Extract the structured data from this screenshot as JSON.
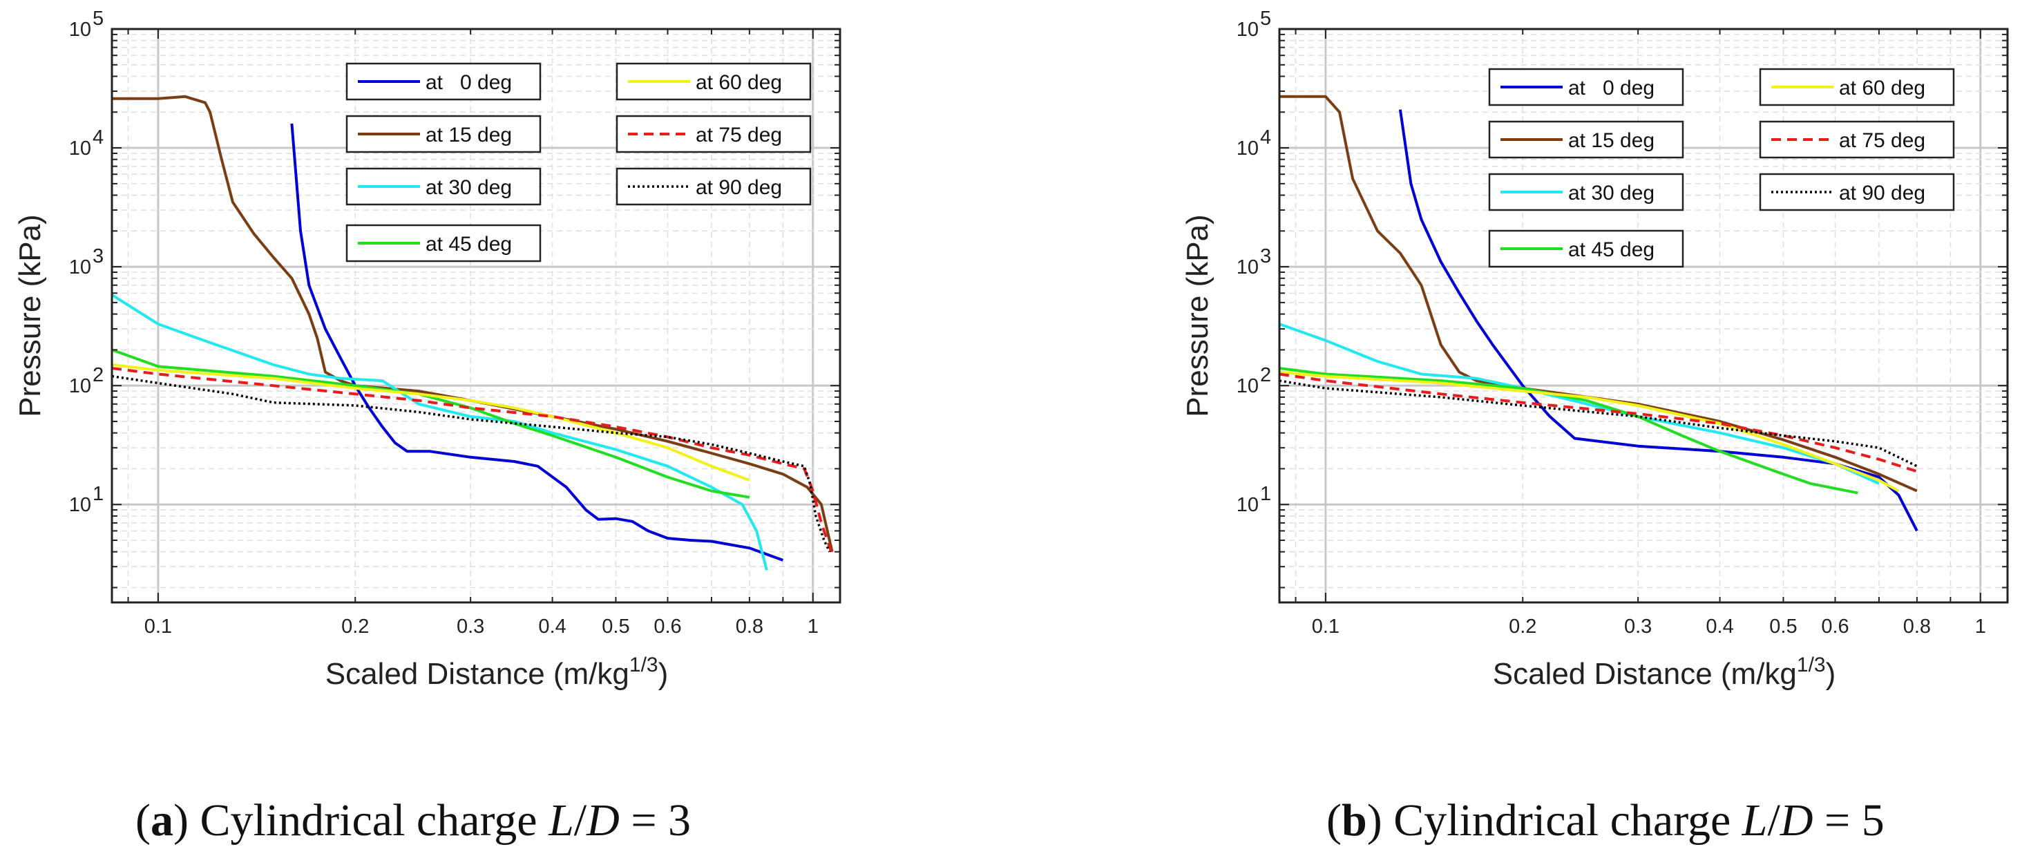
{
  "chart_data": [
    {
      "type": "line",
      "panel": "a",
      "caption": {
        "letter": "a",
        "text": "Cylindrical charge L/D = 3"
      },
      "xlabel": "Scaled Distance (m/kg1/3)",
      "ylabel": "Pressure (kPa)",
      "xscale": "log",
      "yscale": "log",
      "xlim": [
        0.085,
        1.1
      ],
      "ylim": [
        1.5,
        100000
      ],
      "xticks": [
        {
          "v": 0.1,
          "label": "0.1"
        },
        {
          "v": 0.2,
          "label": "0.2"
        },
        {
          "v": 0.3,
          "label": "0.3"
        },
        {
          "v": 0.4,
          "label": "0.4"
        },
        {
          "v": 0.5,
          "label": "0.5"
        },
        {
          "v": 0.6,
          "label": "0.6"
        },
        {
          "v": 0.8,
          "label": "0.8"
        },
        {
          "v": 1,
          "label": "1"
        }
      ],
      "yticks": [
        {
          "v": 10,
          "base": "10",
          "exp": "1"
        },
        {
          "v": 100,
          "base": "10",
          "exp": "2"
        },
        {
          "v": 1000,
          "base": "10",
          "exp": "3"
        },
        {
          "v": 10000,
          "base": "10",
          "exp": "4"
        },
        {
          "v": 100000,
          "base": "10",
          "exp": "5"
        }
      ],
      "grid": true,
      "legend_position": "top",
      "series": [
        {
          "name": "at   0 deg",
          "color": "#0000d4",
          "dash": "solid",
          "x": [
            0.16,
            0.165,
            0.17,
            0.18,
            0.19,
            0.2,
            0.21,
            0.22,
            0.23,
            0.24,
            0.26,
            0.3,
            0.35,
            0.38,
            0.42,
            0.45,
            0.47,
            0.5,
            0.53,
            0.56,
            0.6,
            0.65,
            0.7,
            0.8,
            0.9
          ],
          "y": [
            16000,
            2000,
            700,
            300,
            170,
            100,
            65,
            45,
            33,
            28,
            28,
            25,
            23,
            21,
            14,
            9,
            7.5,
            7.6,
            7.2,
            6,
            5.2,
            5,
            4.9,
            4.3,
            3.4
          ]
        },
        {
          "name": "at 15 deg",
          "color": "#7a3e14",
          "dash": "solid",
          "x": [
            0.085,
            0.1,
            0.11,
            0.118,
            0.12,
            0.125,
            0.13,
            0.14,
            0.15,
            0.16,
            0.17,
            0.175,
            0.18,
            0.19,
            0.2,
            0.25,
            0.3,
            0.4,
            0.5,
            0.6,
            0.7,
            0.8,
            0.9,
            0.98,
            1.03,
            1.07
          ],
          "y": [
            26000,
            26000,
            27000,
            24000,
            20000,
            8000,
            3500,
            1900,
            1200,
            800,
            400,
            250,
            130,
            110,
            100,
            90,
            75,
            55,
            43,
            34,
            27,
            22,
            18,
            14,
            10,
            4
          ]
        },
        {
          "name": "at 30 deg",
          "color": "#22e8f0",
          "dash": "solid",
          "x": [
            0.085,
            0.1,
            0.12,
            0.15,
            0.17,
            0.19,
            0.22,
            0.25,
            0.3,
            0.35,
            0.4,
            0.5,
            0.6,
            0.7,
            0.78,
            0.82,
            0.85
          ],
          "y": [
            580,
            330,
            230,
            150,
            125,
            115,
            110,
            70,
            55,
            50,
            40,
            29,
            21,
            14,
            10,
            6,
            2.8
          ]
        },
        {
          "name": "at 45 deg",
          "color": "#22dd22",
          "dash": "solid",
          "x": [
            0.085,
            0.1,
            0.15,
            0.2,
            0.25,
            0.3,
            0.35,
            0.4,
            0.5,
            0.6,
            0.7,
            0.8
          ],
          "y": [
            200,
            145,
            120,
            100,
            85,
            65,
            48,
            38,
            25,
            17,
            13,
            11.5
          ]
        },
        {
          "name": "at 60 deg",
          "color": "#f2f21a",
          "dash": "solid",
          "x": [
            0.085,
            0.1,
            0.15,
            0.2,
            0.25,
            0.3,
            0.35,
            0.4,
            0.5,
            0.6,
            0.7,
            0.8
          ],
          "y": [
            150,
            135,
            115,
            95,
            85,
            75,
            65,
            55,
            40,
            30,
            21,
            16
          ]
        },
        {
          "name": "at 75 deg",
          "color": "#e81c1c",
          "dash": "dashed",
          "x": [
            0.085,
            0.1,
            0.15,
            0.2,
            0.25,
            0.3,
            0.4,
            0.5,
            0.6,
            0.7,
            0.8,
            0.9,
            0.97,
            1.0,
            1.03,
            1.07
          ],
          "y": [
            140,
            125,
            100,
            85,
            75,
            65,
            55,
            45,
            37,
            30,
            26,
            22,
            20,
            13,
            7,
            3.8
          ]
        },
        {
          "name": "at 90 deg",
          "color": "#000000",
          "dash": "dotted",
          "x": [
            0.085,
            0.1,
            0.13,
            0.15,
            0.2,
            0.25,
            0.3,
            0.4,
            0.5,
            0.6,
            0.7,
            0.8,
            0.9,
            0.97,
            0.99,
            1.01,
            1.04,
            1.06
          ],
          "y": [
            120,
            105,
            85,
            72,
            68,
            60,
            52,
            45,
            40,
            37,
            32,
            27,
            23,
            21,
            15,
            8,
            5,
            4
          ]
        }
      ]
    },
    {
      "type": "line",
      "panel": "b",
      "caption": {
        "letter": "b",
        "text": "Cylindrical charge L/D = 5"
      },
      "xlabel": "Scaled Distance (m/kg1/3)",
      "ylabel": "Pressure (kPa)",
      "xscale": "log",
      "yscale": "log",
      "xlim": [
        0.085,
        1.1
      ],
      "ylim": [
        1.5,
        100000
      ],
      "xticks": [
        {
          "v": 0.1,
          "label": "0.1"
        },
        {
          "v": 0.2,
          "label": "0.2"
        },
        {
          "v": 0.3,
          "label": "0.3"
        },
        {
          "v": 0.4,
          "label": "0.4"
        },
        {
          "v": 0.5,
          "label": "0.5"
        },
        {
          "v": 0.6,
          "label": "0.6"
        },
        {
          "v": 0.8,
          "label": "0.8"
        },
        {
          "v": 1,
          "label": "1"
        }
      ],
      "yticks": [
        {
          "v": 10,
          "base": "10",
          "exp": "1"
        },
        {
          "v": 100,
          "base": "10",
          "exp": "2"
        },
        {
          "v": 1000,
          "base": "10",
          "exp": "3"
        },
        {
          "v": 10000,
          "base": "10",
          "exp": "4"
        },
        {
          "v": 100000,
          "base": "10",
          "exp": "5"
        }
      ],
      "grid": true,
      "legend_position": "top",
      "series": [
        {
          "name": "at   0 deg",
          "color": "#0000d4",
          "dash": "solid",
          "x": [
            0.13,
            0.135,
            0.14,
            0.15,
            0.16,
            0.17,
            0.18,
            0.2,
            0.22,
            0.24,
            0.3,
            0.4,
            0.5,
            0.6,
            0.7,
            0.75,
            0.8
          ],
          "y": [
            21000,
            5000,
            2500,
            1100,
            600,
            350,
            220,
            100,
            55,
            36,
            31,
            28,
            25,
            22,
            17,
            12,
            6
          ]
        },
        {
          "name": "at 15 deg",
          "color": "#7a3e14",
          "dash": "solid",
          "x": [
            0.085,
            0.1,
            0.105,
            0.11,
            0.12,
            0.13,
            0.14,
            0.15,
            0.16,
            0.17,
            0.2,
            0.3,
            0.4,
            0.5,
            0.6,
            0.7,
            0.8
          ],
          "y": [
            27000,
            27000,
            20000,
            5500,
            2000,
            1300,
            700,
            220,
            130,
            110,
            95,
            70,
            50,
            35,
            25,
            18,
            13
          ]
        },
        {
          "name": "at 30 deg",
          "color": "#22e8f0",
          "dash": "solid",
          "x": [
            0.085,
            0.1,
            0.12,
            0.14,
            0.17,
            0.2,
            0.3,
            0.4,
            0.5,
            0.6,
            0.7
          ],
          "y": [
            330,
            240,
            160,
            125,
            115,
            95,
            55,
            40,
            30,
            22,
            15
          ]
        },
        {
          "name": "at 45 deg",
          "color": "#22dd22",
          "dash": "solid",
          "x": [
            0.085,
            0.1,
            0.15,
            0.2,
            0.25,
            0.3,
            0.35,
            0.4,
            0.5,
            0.55,
            0.65
          ],
          "y": [
            140,
            125,
            110,
            95,
            75,
            55,
            38,
            28,
            18,
            15,
            12.5
          ]
        },
        {
          "name": "at 60 deg",
          "color": "#f2f21a",
          "dash": "solid",
          "x": [
            0.085,
            0.1,
            0.15,
            0.2,
            0.25,
            0.3,
            0.4,
            0.5,
            0.6,
            0.7,
            0.75
          ],
          "y": [
            130,
            120,
            105,
            90,
            80,
            68,
            48,
            32,
            22,
            16,
            13
          ]
        },
        {
          "name": "at 75 deg",
          "color": "#e81c1c",
          "dash": "dashed",
          "x": [
            0.085,
            0.1,
            0.15,
            0.2,
            0.3,
            0.4,
            0.5,
            0.6,
            0.7,
            0.8
          ],
          "y": [
            125,
            110,
            85,
            72,
            58,
            48,
            38,
            30,
            24,
            19
          ]
        },
        {
          "name": "at 90 deg",
          "color": "#000000",
          "dash": "dotted",
          "x": [
            0.085,
            0.1,
            0.15,
            0.2,
            0.3,
            0.4,
            0.5,
            0.6,
            0.7,
            0.8
          ],
          "y": [
            110,
            95,
            80,
            68,
            55,
            44,
            38,
            34,
            30,
            21
          ]
        }
      ]
    }
  ]
}
